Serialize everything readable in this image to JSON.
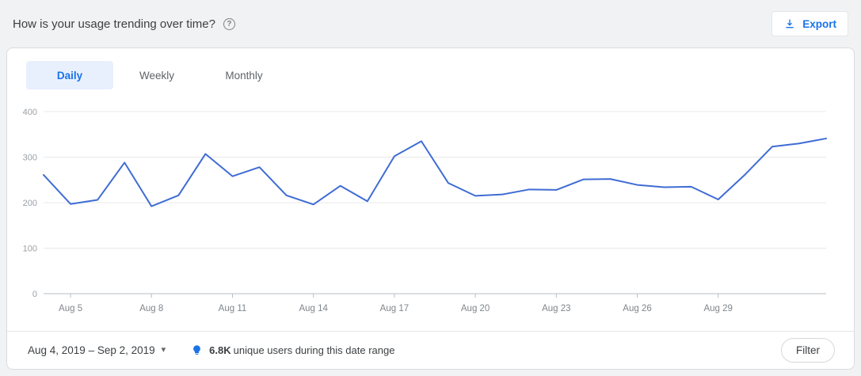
{
  "header": {
    "title": "How is your usage trending over time?",
    "help_icon": "?",
    "export_label": "Export"
  },
  "tabs": [
    {
      "label": "Daily",
      "active": true
    },
    {
      "label": "Weekly",
      "active": false
    },
    {
      "label": "Monthly",
      "active": false
    }
  ],
  "chart_data": {
    "type": "line",
    "title": "How is your usage trending over time?",
    "x": [
      "Aug 4",
      "Aug 5",
      "Aug 6",
      "Aug 7",
      "Aug 8",
      "Aug 9",
      "Aug 10",
      "Aug 11",
      "Aug 12",
      "Aug 13",
      "Aug 14",
      "Aug 15",
      "Aug 16",
      "Aug 17",
      "Aug 18",
      "Aug 19",
      "Aug 20",
      "Aug 21",
      "Aug 22",
      "Aug 23",
      "Aug 24",
      "Aug 25",
      "Aug 26",
      "Aug 27",
      "Aug 28",
      "Aug 29",
      "Aug 30",
      "Aug 31",
      "Sep 1",
      "Sep 2"
    ],
    "values": [
      261,
      197,
      206,
      288,
      192,
      216,
      307,
      258,
      278,
      216,
      196,
      237,
      203,
      302,
      335,
      243,
      215,
      218,
      229,
      228,
      251,
      252,
      239,
      234,
      235,
      207,
      262,
      323,
      330,
      341
    ],
    "ylim": [
      0,
      400
    ],
    "y_ticks": [
      0,
      100,
      200,
      300,
      400
    ],
    "x_ticks": [
      {
        "index": 1,
        "label": "Aug 5"
      },
      {
        "index": 4,
        "label": "Aug 8"
      },
      {
        "index": 7,
        "label": "Aug 11"
      },
      {
        "index": 10,
        "label": "Aug 14"
      },
      {
        "index": 13,
        "label": "Aug 17"
      },
      {
        "index": 16,
        "label": "Aug 20"
      },
      {
        "index": 19,
        "label": "Aug 23"
      },
      {
        "index": 22,
        "label": "Aug 26"
      },
      {
        "index": 25,
        "label": "Aug 29"
      }
    ],
    "grid": true,
    "legend": "none",
    "line_color": "#3f6cd4",
    "grid_color": "#e8e8e8",
    "axis_color": "#b9bdc1",
    "y_label_color": "#9aa0a6",
    "x_label_color": "#80868b"
  },
  "footer": {
    "date_range": "Aug 4, 2019 – Sep 2, 2019",
    "caret_icon": "▾",
    "insight_value": "6.8K",
    "insight_text": "unique users during this date range",
    "filter_label": "Filter"
  }
}
